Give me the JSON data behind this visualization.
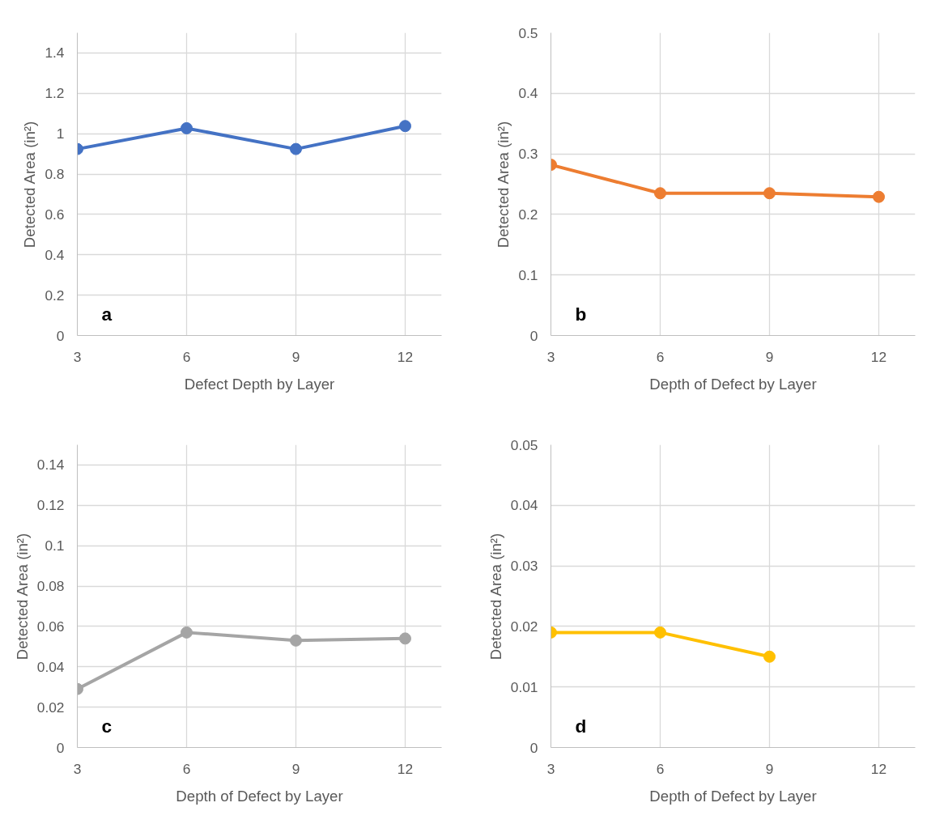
{
  "chart_data": [
    {
      "type": "line",
      "xlabel": "Defect Depth by Layer",
      "ylabel": "Detected Area (in²)",
      "x": [
        3,
        6,
        9,
        12
      ],
      "xlim": [
        3,
        13
      ],
      "xticks": [
        3,
        6,
        9,
        12
      ],
      "ylim": [
        0,
        1.5
      ],
      "yticks": [
        0,
        0.2,
        0.4,
        0.6,
        0.8,
        1,
        1.2,
        1.4
      ],
      "grid": true,
      "marker": "circle",
      "annotations": [
        "a"
      ],
      "series": [
        {
          "color": "#4472c4",
          "values": [
            0.924,
            1.027,
            0.924,
            1.038
          ]
        }
      ]
    },
    {
      "type": "line",
      "xlabel": "Depth of Defect by Layer",
      "ylabel": "Detected Area (in²)",
      "x": [
        3,
        6,
        9,
        12
      ],
      "xlim": [
        3,
        13
      ],
      "xticks": [
        3,
        6,
        9,
        12
      ],
      "ylim": [
        0,
        0.5
      ],
      "yticks": [
        0,
        0.1,
        0.2,
        0.3,
        0.4,
        0.5
      ],
      "grid": true,
      "marker": "circle",
      "annotations": [
        "b"
      ],
      "series": [
        {
          "color": "#ed7d31",
          "values": [
            0.282,
            0.235,
            0.235,
            0.229
          ]
        }
      ]
    },
    {
      "type": "line",
      "xlabel": "Depth of Defect by Layer",
      "ylabel": "Detected Area (in²)",
      "x": [
        3,
        6,
        9,
        12
      ],
      "xlim": [
        3,
        13
      ],
      "xticks": [
        3,
        6,
        9,
        12
      ],
      "ylim": [
        0,
        0.15
      ],
      "yticks": [
        0,
        0.02,
        0.04,
        0.06,
        0.08,
        0.1,
        0.12,
        0.14
      ],
      "grid": true,
      "marker": "circle",
      "annotations": [
        "c"
      ],
      "series": [
        {
          "color": "#a5a5a5",
          "values": [
            0.029,
            0.057,
            0.053,
            0.054
          ]
        }
      ]
    },
    {
      "type": "line",
      "xlabel": "Depth of Defect by Layer",
      "ylabel": "Detected Area (in²)",
      "x": [
        3,
        6,
        9
      ],
      "xlim": [
        3,
        13
      ],
      "xticks": [
        3,
        6,
        9,
        12
      ],
      "ylim": [
        0,
        0.05
      ],
      "yticks": [
        0,
        0.01,
        0.02,
        0.03,
        0.04,
        0.05
      ],
      "grid": true,
      "marker": "circle",
      "annotations": [
        "d"
      ],
      "series": [
        {
          "color": "#ffc000",
          "values": [
            0.019,
            0.019,
            0.015
          ]
        }
      ]
    }
  ]
}
